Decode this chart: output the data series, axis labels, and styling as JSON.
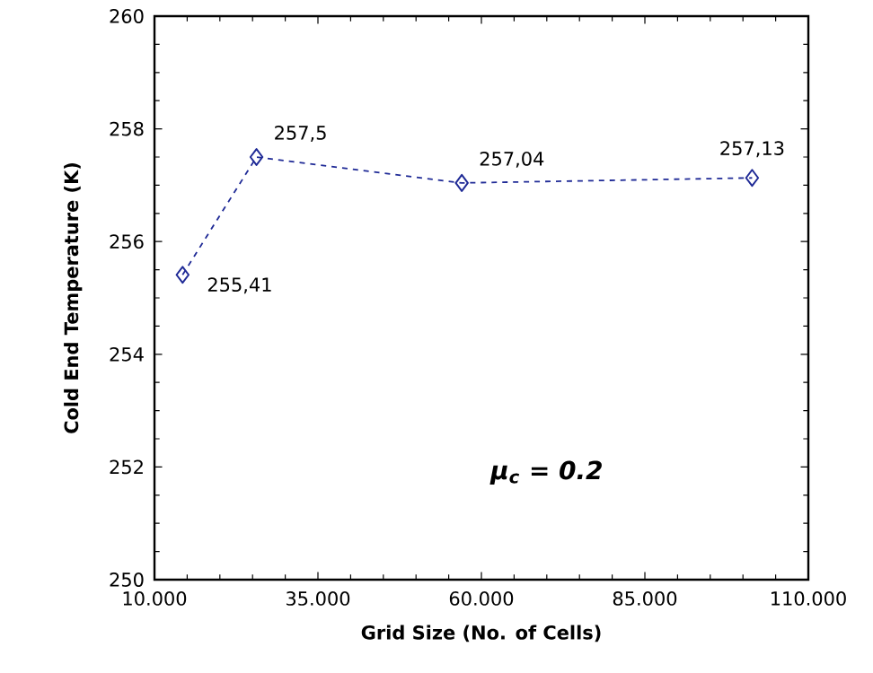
{
  "chart_data": {
    "type": "line",
    "xlabel": "Grid Size (No. of Cells)",
    "ylabel": "Cold End Temperature (K)",
    "x": [
      14300,
      25600,
      57000,
      101400
    ],
    "series": [
      {
        "color": "#1f2a96",
        "values": [
          255.41,
          257.5,
          257.04,
          257.13
        ],
        "value_labels": [
          "255,41",
          "257,5",
          "257,04",
          "257,13"
        ]
      }
    ],
    "xlim": [
      10000,
      110000
    ],
    "xticks": [
      {
        "value": 10000,
        "label": "10.000"
      },
      {
        "value": 35000,
        "label": "35.000"
      },
      {
        "value": 60000,
        "label": "60.000"
      },
      {
        "value": 85000,
        "label": "85.000"
      },
      {
        "value": 110000,
        "label": "110.000"
      }
    ],
    "ylim": [
      250,
      260
    ],
    "yticks": [
      250,
      252,
      254,
      256,
      258,
      260
    ],
    "marker": "diamond",
    "line_style": "dashed",
    "grid": false,
    "annotations": [
      "**μ$_{c}$ = 0.2**"
    ]
  }
}
